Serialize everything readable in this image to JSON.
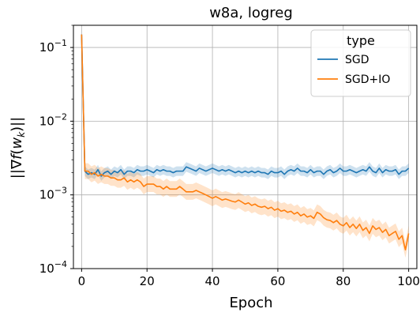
{
  "chart_data": {
    "type": "line",
    "title": "w8a, logreg",
    "xlabel": "Epoch",
    "ylabel": "||∇f(w_k)||",
    "yscale": "log",
    "xlim": [
      -2.5,
      102.5
    ],
    "ylim": [
      0.0001,
      0.2
    ],
    "x_ticks": [
      0,
      20,
      40,
      60,
      80,
      100
    ],
    "y_ticks": [
      0.0001,
      0.001,
      0.01,
      0.1
    ],
    "y_tick_bases": [
      "10",
      "10",
      "10",
      "10"
    ],
    "y_tick_exponents": [
      "−4",
      "−3",
      "−2",
      "−1"
    ],
    "grid": true,
    "legend": {
      "title": "type",
      "position": "top-right"
    },
    "x": [
      0,
      1,
      2,
      3,
      4,
      5,
      6,
      7,
      8,
      9,
      10,
      11,
      12,
      13,
      14,
      15,
      16,
      17,
      18,
      19,
      20,
      21,
      22,
      23,
      24,
      25,
      26,
      27,
      28,
      29,
      30,
      31,
      32,
      33,
      34,
      35,
      36,
      37,
      38,
      39,
      40,
      41,
      42,
      43,
      44,
      45,
      46,
      47,
      48,
      49,
      50,
      51,
      52,
      53,
      54,
      55,
      56,
      57,
      58,
      59,
      60,
      61,
      62,
      63,
      64,
      65,
      66,
      67,
      68,
      69,
      70,
      71,
      72,
      73,
      74,
      75,
      76,
      77,
      78,
      79,
      80,
      81,
      82,
      83,
      84,
      85,
      86,
      87,
      88,
      89,
      90,
      91,
      92,
      93,
      94,
      95,
      96,
      97,
      98,
      99,
      100
    ],
    "series": [
      {
        "name": "SGD",
        "color": "#1f77b4",
        "values": [
          0.15,
          0.0021,
          0.0019,
          0.002,
          0.0019,
          0.0022,
          0.0018,
          0.002,
          0.0021,
          0.0019,
          0.0021,
          0.002,
          0.0022,
          0.0019,
          0.0021,
          0.0021,
          0.002,
          0.0022,
          0.0021,
          0.0021,
          0.0022,
          0.0021,
          0.002,
          0.0022,
          0.0021,
          0.0022,
          0.0021,
          0.0021,
          0.002,
          0.0021,
          0.0021,
          0.0021,
          0.0024,
          0.0023,
          0.0022,
          0.0021,
          0.0023,
          0.0022,
          0.0021,
          0.0022,
          0.0023,
          0.0022,
          0.0021,
          0.0022,
          0.0021,
          0.0022,
          0.0021,
          0.002,
          0.0021,
          0.002,
          0.0021,
          0.002,
          0.0021,
          0.002,
          0.0021,
          0.002,
          0.002,
          0.0019,
          0.0021,
          0.002,
          0.002,
          0.0021,
          0.0019,
          0.0021,
          0.0022,
          0.0021,
          0.0023,
          0.0021,
          0.0021,
          0.002,
          0.0022,
          0.002,
          0.0021,
          0.0021,
          0.0019,
          0.0021,
          0.0022,
          0.002,
          0.0021,
          0.0023,
          0.0021,
          0.0021,
          0.0022,
          0.0021,
          0.002,
          0.0021,
          0.0022,
          0.0021,
          0.0024,
          0.0021,
          0.002,
          0.0023,
          0.002,
          0.0022,
          0.0021,
          0.0021,
          0.0022,
          0.0019,
          0.0021,
          0.0021,
          0.0023
        ],
        "band": 0.16
      },
      {
        "name": "SGD+IO",
        "color": "#ff7f0e",
        "values": [
          0.15,
          0.0021,
          0.0021,
          0.0019,
          0.002,
          0.0018,
          0.0019,
          0.0018,
          0.0018,
          0.0017,
          0.0017,
          0.0016,
          0.0016,
          0.0017,
          0.0015,
          0.0016,
          0.0015,
          0.0016,
          0.0015,
          0.0013,
          0.0014,
          0.0014,
          0.0014,
          0.0013,
          0.0013,
          0.0012,
          0.0013,
          0.0012,
          0.0012,
          0.0012,
          0.0013,
          0.0012,
          0.0011,
          0.0011,
          0.0011,
          0.00115,
          0.0011,
          0.00105,
          0.001,
          0.00095,
          0.0009,
          0.00095,
          0.0009,
          0.00085,
          0.00088,
          0.00085,
          0.00082,
          0.0008,
          0.00085,
          0.0008,
          0.00075,
          0.00078,
          0.00072,
          0.00075,
          0.0007,
          0.00068,
          0.0007,
          0.00065,
          0.00068,
          0.00062,
          0.00065,
          0.0006,
          0.00062,
          0.00058,
          0.0006,
          0.00055,
          0.00058,
          0.00052,
          0.00055,
          0.0005,
          0.00052,
          0.00048,
          0.00058,
          0.00055,
          0.00049,
          0.00046,
          0.00045,
          0.00042,
          0.00045,
          0.0004,
          0.00038,
          0.00042,
          0.00036,
          0.0004,
          0.00035,
          0.0004,
          0.00033,
          0.00036,
          0.0003,
          0.00038,
          0.00034,
          0.00036,
          0.00031,
          0.00034,
          0.00028,
          0.0003,
          0.00032,
          0.00025,
          0.00028,
          0.00018,
          0.0003
        ],
        "band": 0.28
      }
    ]
  }
}
